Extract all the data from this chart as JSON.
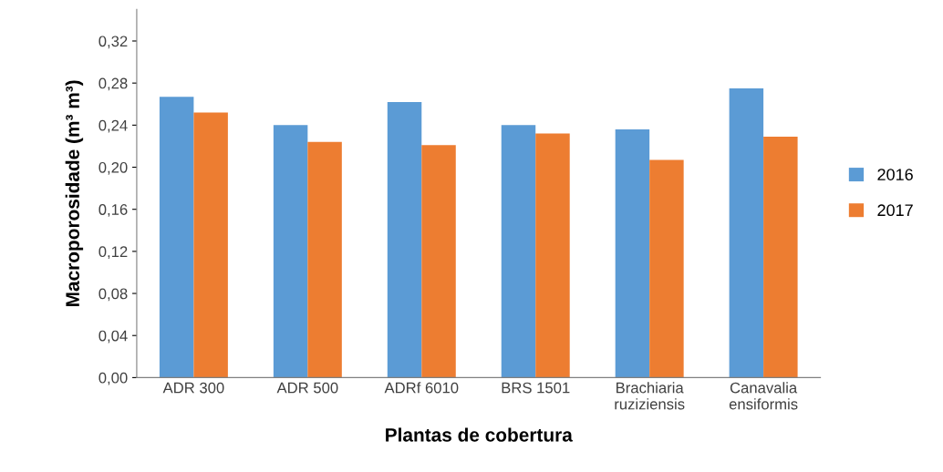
{
  "chart_data": {
    "type": "bar",
    "xlabel": "Plantas de cobertura",
    "ylabel": "Macroporosidade (m³ m³)",
    "categories": [
      "ADR 300",
      "ADR 500",
      "ADRf 6010",
      "BRS 1501",
      "Brachiaria\nruziziensis",
      "Canavalia\nensiformis"
    ],
    "series": [
      {
        "name": "2016",
        "color": "#5b9bd5",
        "values": [
          0.267,
          0.24,
          0.262,
          0.24,
          0.236,
          0.275
        ]
      },
      {
        "name": "2017",
        "color": "#ed7d31",
        "values": [
          0.252,
          0.224,
          0.221,
          0.232,
          0.207,
          0.229
        ]
      }
    ],
    "ylim": [
      0,
      0.35
    ],
    "yticks": [
      {
        "value": 0,
        "label": "0,00"
      },
      {
        "value": 0.04,
        "label": "0,04"
      },
      {
        "value": 0.08,
        "label": "0,08"
      },
      {
        "value": 0.12,
        "label": "0,12"
      },
      {
        "value": 0.16,
        "label": "0,16"
      },
      {
        "value": 0.2,
        "label": "0,20"
      },
      {
        "value": 0.24,
        "label": "0,24"
      },
      {
        "value": 0.28,
        "label": "0,28"
      },
      {
        "value": 0.32,
        "label": "0,32"
      }
    ],
    "grid": false,
    "legend": "right"
  }
}
